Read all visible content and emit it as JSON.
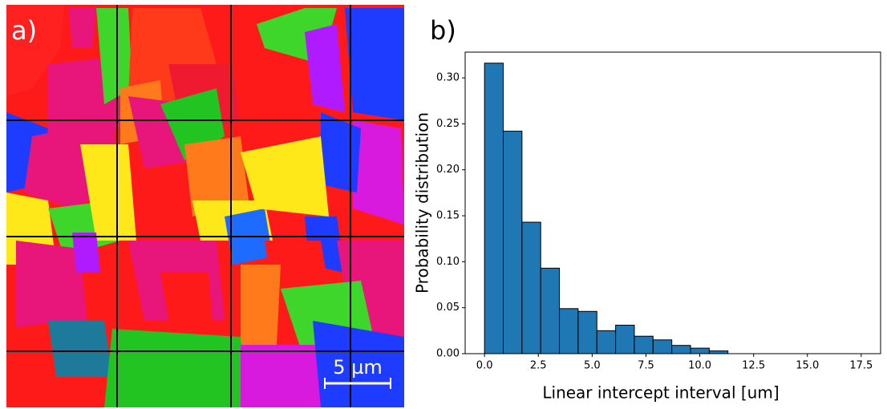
{
  "image_panel": {
    "label": "a)",
    "scale_bar_label": "5 µm"
  },
  "chart_data": {
    "type": "histogram",
    "label": "b)",
    "xlabel": "Linear intercept interval [um]",
    "ylabel": "Probability distribution",
    "bins": [
      0,
      0.87,
      1.74,
      2.61,
      3.48,
      4.35,
      5.22,
      6.09,
      6.96,
      7.83,
      8.7,
      9.57,
      10.44,
      11.31
    ],
    "values": [
      0.316,
      0.242,
      0.143,
      0.093,
      0.049,
      0.046,
      0.025,
      0.031,
      0.019,
      0.015,
      0.009,
      0.006,
      0.003
    ],
    "color": "#1f77b4",
    "edgecolor": "#000000",
    "xlim": [
      -0.9,
      18.4
    ],
    "ylim": [
      0,
      0.328
    ],
    "xticks": [
      {
        "value": 0,
        "label": "0.0"
      },
      {
        "value": 2.5,
        "label": "2.5"
      },
      {
        "value": 5,
        "label": "5.0"
      },
      {
        "value": 7.5,
        "label": "7.5"
      },
      {
        "value": 10,
        "label": "10.0"
      },
      {
        "value": 12.5,
        "label": "12.5"
      },
      {
        "value": 15,
        "label": "15.0"
      },
      {
        "value": 17.5,
        "label": "17.5"
      }
    ],
    "yticks": [
      {
        "value": 0,
        "label": "0.00"
      },
      {
        "value": 0.05,
        "label": "0.05"
      },
      {
        "value": 0.1,
        "label": "0.10"
      },
      {
        "value": 0.15,
        "label": "0.15"
      },
      {
        "value": 0.2,
        "label": "0.20"
      },
      {
        "value": 0.25,
        "label": "0.25"
      },
      {
        "value": 0.3,
        "label": "0.30"
      }
    ]
  }
}
